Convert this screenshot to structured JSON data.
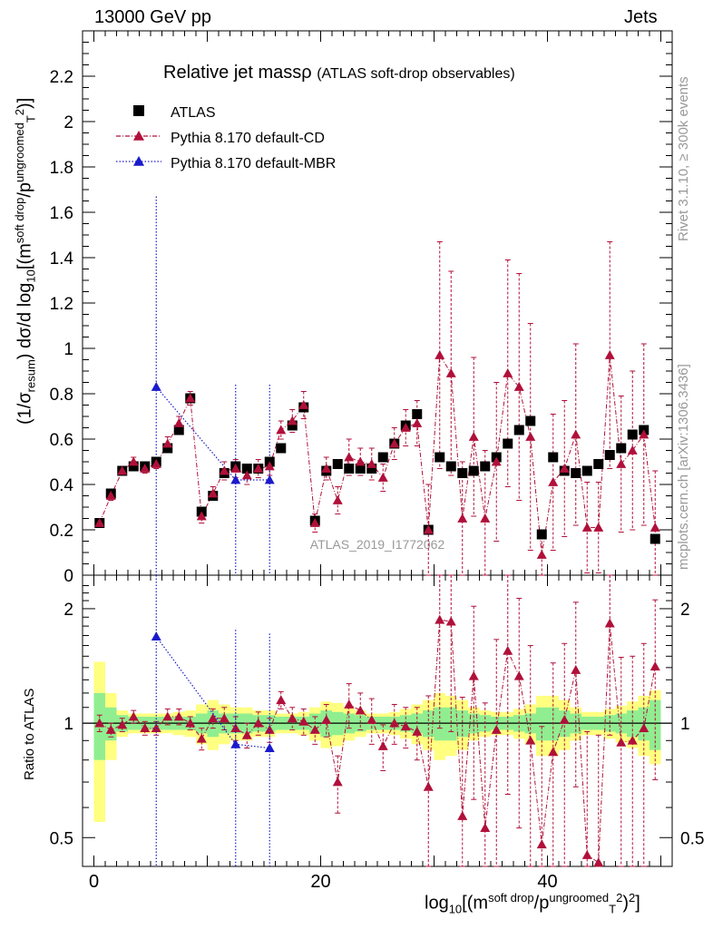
{
  "header": {
    "left": "13000 GeV pp",
    "right": "Jets",
    "rivet": "Rivet 3.1.10, ≥ 300k events",
    "mcplots": "mcplots.cern.ch [arXiv:1306.3436]"
  },
  "chart_data": {
    "type": "scatter",
    "title": "Relative jet massρ",
    "subtitle": "(ATLAS soft-drop observables)",
    "watermark": "ATLAS_2019_I1772062",
    "ylabel": {
      "pre": "(1/σ",
      "sub1": "resum",
      "mid": ") dσ/d log",
      "sub2": "10",
      "post": "[(m",
      "sup1": "soft drop",
      "mid2": "/p",
      "sup2": "ungroomed",
      "sub3": "T",
      "sup3": "2",
      "end": ")]"
    },
    "xlabel": {
      "pre": "log",
      "sub": "10",
      "mid": "[(m",
      "sup1": "soft drop",
      "mid2": "/p",
      "sup2": "ungroomed",
      "sub2": "T",
      "sup3": "2",
      "end": ")",
      "sup4": "2",
      "end2": "]"
    },
    "ratio_ylabel": "Ratio to ATLAS",
    "xlim": [
      -1,
      51
    ],
    "ylim": [
      0,
      2.4
    ],
    "ratio_ylim": [
      0.42,
      2.45
    ],
    "xticks": [
      0,
      20,
      40
    ],
    "yticks": [
      0,
      0.2,
      0.4,
      0.6,
      0.8,
      1,
      1.2,
      1.4,
      1.6,
      1.8,
      2,
      2.2
    ],
    "ratio_yticks": [
      0.5,
      1,
      2
    ],
    "legend": [
      {
        "name": "ATLAS",
        "marker": "square",
        "color": "#000000"
      },
      {
        "name": "Pythia 8.170 default-CD",
        "marker": "triangle",
        "color": "#b0103a"
      },
      {
        "name": "Pythia 8.170 default-MBR",
        "marker": "triangle",
        "color": "#1a1acc"
      }
    ],
    "x": [
      0.5,
      1.5,
      2.5,
      3.5,
      4.5,
      5.5,
      6.5,
      7.5,
      8.5,
      9.5,
      10.5,
      11.5,
      12.5,
      13.5,
      14.5,
      15.5,
      16.5,
      17.5,
      18.5,
      19.5,
      20.5,
      21.5,
      22.5,
      23.5,
      24.5,
      25.5,
      26.5,
      27.5,
      28.5,
      29.5,
      30.5,
      31.5,
      32.5,
      33.5,
      34.5,
      35.5,
      36.5,
      37.5,
      38.5,
      39.5,
      40.5,
      41.5,
      42.5,
      43.5,
      44.5,
      45.5,
      46.5,
      47.5,
      48.5,
      49.5
    ],
    "atlas": [
      0.23,
      0.36,
      0.46,
      0.48,
      0.48,
      0.5,
      0.56,
      0.64,
      0.78,
      0.28,
      0.35,
      0.45,
      0.48,
      0.47,
      0.47,
      0.5,
      0.56,
      0.66,
      0.74,
      0.24,
      0.46,
      0.49,
      0.47,
      0.47,
      0.47,
      0.52,
      0.58,
      0.66,
      0.71,
      0.2,
      0.52,
      0.48,
      0.45,
      0.46,
      0.48,
      0.52,
      0.58,
      0.64,
      0.68,
      0.18,
      0.52,
      0.46,
      0.45,
      0.46,
      0.49,
      0.53,
      0.56,
      0.62,
      0.64,
      0.16
    ],
    "cd": [
      0.23,
      0.35,
      0.46,
      0.5,
      0.47,
      0.49,
      0.58,
      0.67,
      0.78,
      0.26,
      0.36,
      0.46,
      0.47,
      0.44,
      0.47,
      0.48,
      0.64,
      0.68,
      0.75,
      0.23,
      0.47,
      0.33,
      0.52,
      0.5,
      0.49,
      0.43,
      0.58,
      0.65,
      0.67,
      0.2,
      0.97,
      0.89,
      0.25,
      0.61,
      0.25,
      0.5,
      0.89,
      0.83,
      0.61,
      0.09,
      0.41,
      0.47,
      0.62,
      0.21,
      0.21,
      0.97,
      0.49,
      0.55,
      0.62,
      0.21
    ],
    "cd_err": [
      0.02,
      0.02,
      0.02,
      0.02,
      0.02,
      0.02,
      0.03,
      0.03,
      0.03,
      0.03,
      0.03,
      0.04,
      0.04,
      0.04,
      0.04,
      0.04,
      0.04,
      0.05,
      0.06,
      0.04,
      0.05,
      0.06,
      0.08,
      0.06,
      0.07,
      0.06,
      0.07,
      0.08,
      0.1,
      0.2,
      0.5,
      0.45,
      0.25,
      0.35,
      0.3,
      0.35,
      0.5,
      0.5,
      0.5,
      0.1,
      0.3,
      0.3,
      0.4,
      0.2,
      0.2,
      0.5,
      0.3,
      0.35,
      0.4,
      0.25
    ],
    "mbr_x": [
      5.5,
      12.5,
      15.5
    ],
    "mbr": [
      0.83,
      0.42,
      0.42
    ],
    "mbr_err": [
      0.84,
      0.42,
      0.42
    ],
    "ratio_cd": [
      1.0,
      0.96,
      0.99,
      1.04,
      0.97,
      0.97,
      1.04,
      1.04,
      1.0,
      0.91,
      1.03,
      1.03,
      0.97,
      0.93,
      1.0,
      0.96,
      1.15,
      1.03,
      1.01,
      0.96,
      1.02,
      0.7,
      1.12,
      1.08,
      1.02,
      0.87,
      1.0,
      0.98,
      0.95,
      0.68,
      1.87,
      1.85,
      0.57,
      1.33,
      0.53,
      0.96,
      1.55,
      1.33,
      0.9,
      0.48,
      0.84,
      1.02,
      1.38,
      0.45,
      0.43,
      1.83,
      0.89,
      0.9,
      0.97,
      1.41
    ],
    "ratio_cd_err": [
      0.05,
      0.04,
      0.04,
      0.04,
      0.04,
      0.04,
      0.05,
      0.05,
      0.04,
      0.06,
      0.06,
      0.07,
      0.07,
      0.07,
      0.07,
      0.07,
      0.06,
      0.07,
      0.08,
      0.08,
      0.1,
      0.12,
      0.15,
      0.12,
      0.14,
      0.12,
      0.12,
      0.12,
      0.15,
      0.5,
      0.9,
      0.9,
      0.6,
      0.7,
      0.6,
      0.7,
      0.9,
      0.8,
      0.7,
      0.5,
      0.6,
      0.6,
      0.7,
      0.5,
      0.5,
      0.9,
      0.6,
      0.6,
      0.65,
      0.7
    ],
    "ratio_mbr": [
      1.69,
      0.88,
      0.86
    ],
    "ratio_mbr_err": [
      1.7,
      0.88,
      0.86
    ],
    "band_inner": [
      0.2,
      0.1,
      0.05,
      0.04,
      0.04,
      0.04,
      0.04,
      0.04,
      0.04,
      0.06,
      0.08,
      0.06,
      0.06,
      0.06,
      0.05,
      0.05,
      0.04,
      0.04,
      0.04,
      0.06,
      0.08,
      0.07,
      0.06,
      0.05,
      0.04,
      0.04,
      0.04,
      0.05,
      0.06,
      0.08,
      0.1,
      0.1,
      0.08,
      0.06,
      0.05,
      0.04,
      0.04,
      0.05,
      0.06,
      0.1,
      0.1,
      0.08,
      0.06,
      0.04,
      0.04,
      0.05,
      0.06,
      0.08,
      0.1,
      0.15
    ],
    "band_outer": [
      0.45,
      0.2,
      0.08,
      0.06,
      0.06,
      0.06,
      0.06,
      0.07,
      0.08,
      0.12,
      0.15,
      0.12,
      0.1,
      0.1,
      0.08,
      0.08,
      0.06,
      0.06,
      0.07,
      0.1,
      0.14,
      0.13,
      0.1,
      0.08,
      0.06,
      0.06,
      0.07,
      0.09,
      0.12,
      0.15,
      0.2,
      0.18,
      0.15,
      0.1,
      0.08,
      0.07,
      0.07,
      0.09,
      0.12,
      0.18,
      0.18,
      0.15,
      0.1,
      0.07,
      0.07,
      0.09,
      0.11,
      0.14,
      0.18,
      0.22
    ],
    "colors": {
      "atlas": "#000000",
      "cd": "#b0103a",
      "mbr": "#1a1acc",
      "band_inner": "#90ee90",
      "band_outer": "#ffff80"
    }
  }
}
